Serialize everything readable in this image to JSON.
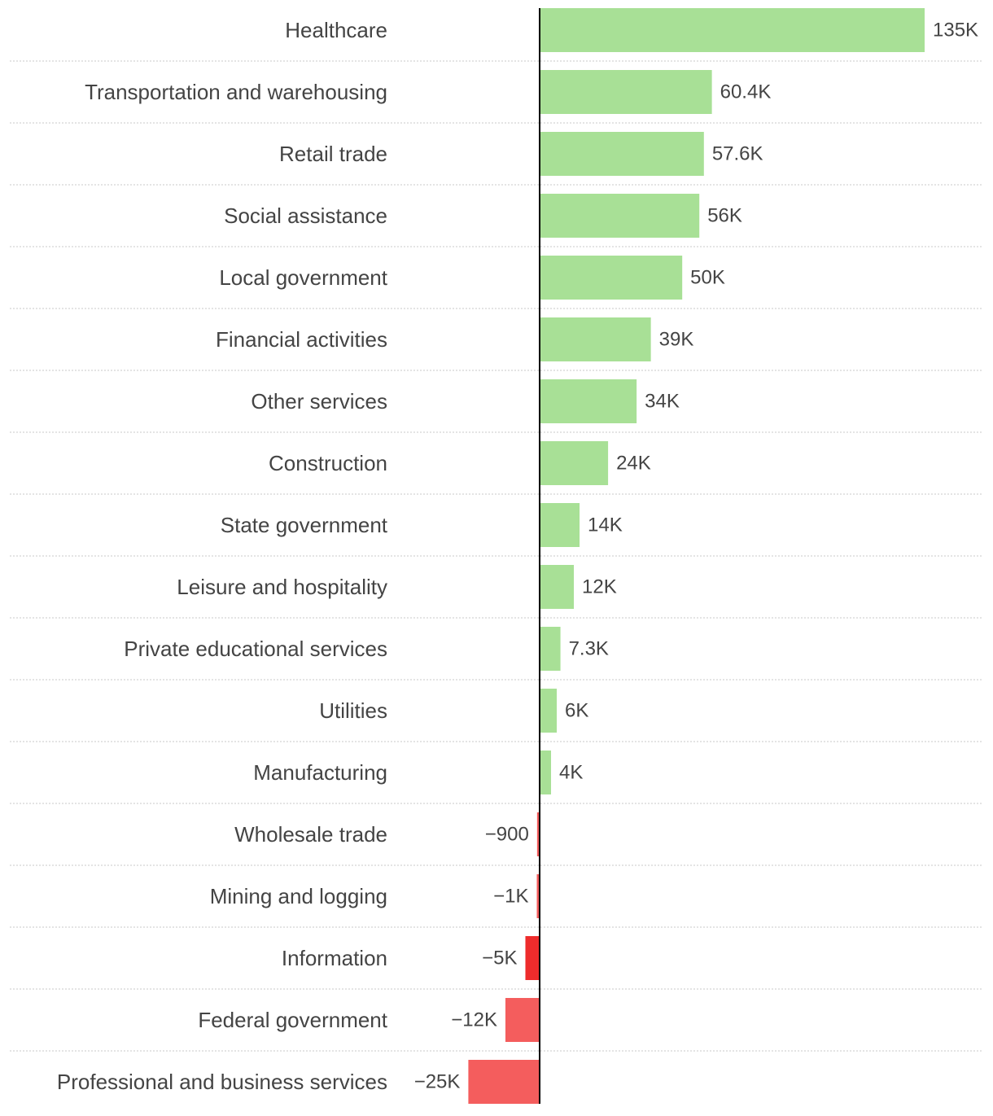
{
  "chart_data": {
    "type": "bar",
    "orientation": "horizontal",
    "title": "",
    "xlabel": "",
    "ylabel": "",
    "categories": [
      "Healthcare",
      "Transportation and warehousing",
      "Retail trade",
      "Social assistance",
      "Local government",
      "Financial activities",
      "Other services",
      "Construction",
      "State government",
      "Leisure and hospitality",
      "Private educational services",
      "Utilities",
      "Manufacturing",
      "Wholesale trade",
      "Mining and logging",
      "Information",
      "Federal government",
      "Professional and business services"
    ],
    "values": [
      135000,
      60400,
      57600,
      56000,
      50000,
      39000,
      34000,
      24000,
      14000,
      12000,
      7300,
      6000,
      4000,
      -900,
      -1000,
      -5000,
      -12000,
      -25000
    ],
    "value_labels": [
      "135K",
      "60.4K",
      "57.6K",
      "56K",
      "50K",
      "39K",
      "34K",
      "24K",
      "14K",
      "12K",
      "7.3K",
      "6K",
      "4K",
      "−900",
      "−1K",
      "−5K",
      "−12K",
      "−25K"
    ],
    "xlim": [
      -25000,
      135000
    ],
    "grid": false,
    "colors": {
      "positive": "#a8e096",
      "negative": "#f45d5d",
      "negative_highlight": "#ee2c2c",
      "highlight_index": 15,
      "axis": "#000000",
      "separator": "#c8c8c8",
      "text": "#444444"
    }
  }
}
